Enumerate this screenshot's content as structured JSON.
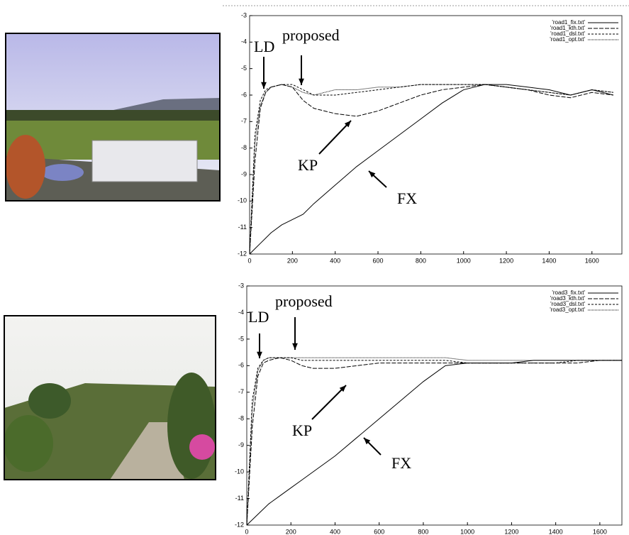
{
  "chart_data": [
    {
      "type": "line",
      "x": [
        0,
        25,
        50,
        75,
        100,
        150,
        200,
        250,
        300,
        400,
        500,
        600,
        700,
        800,
        900,
        1000,
        1100,
        1200,
        1300,
        1400,
        1500,
        1600,
        1700
      ],
      "series": [
        {
          "name": "'road1_fix.txt'",
          "color": "#000000",
          "dash": "none",
          "values": [
            -12.0,
            -11.8,
            -11.6,
            -11.4,
            -11.2,
            -10.9,
            -10.7,
            -10.5,
            -10.1,
            -9.4,
            -8.7,
            -8.1,
            -7.5,
            -6.9,
            -6.3,
            -5.8,
            -5.6,
            -5.6,
            -5.7,
            -5.8,
            -6.0,
            -5.8,
            -6.0
          ]
        },
        {
          "name": "'road1_kth.txt'",
          "color": "#000000",
          "dash": "6 2",
          "values": [
            -12.0,
            -8.5,
            -6.5,
            -5.9,
            -5.7,
            -5.6,
            -5.7,
            -6.2,
            -6.5,
            -6.7,
            -6.8,
            -6.6,
            -6.3,
            -6.0,
            -5.8,
            -5.7,
            -5.6,
            -5.7,
            -5.8,
            -6.0,
            -6.1,
            -5.9,
            -6.0
          ]
        },
        {
          "name": "'road1_dsl.txt'",
          "color": "#000000",
          "dash": "3 2",
          "values": [
            -12.0,
            -7.5,
            -6.2,
            -5.8,
            -5.7,
            -5.6,
            -5.6,
            -5.8,
            -6.0,
            -6.0,
            -5.9,
            -5.8,
            -5.7,
            -5.6,
            -5.6,
            -5.6,
            -5.6,
            -5.7,
            -5.8,
            -5.9,
            -6.0,
            -5.8,
            -5.9
          ]
        },
        {
          "name": "'road1_opt.txt'",
          "color": "#000000",
          "dash": "1 1",
          "values": [
            -12.0,
            -7.8,
            -6.4,
            -5.9,
            -5.7,
            -5.6,
            -5.7,
            -5.9,
            -6.0,
            -5.8,
            -5.8,
            -5.7,
            -5.7,
            -5.6,
            -5.6,
            -5.6,
            -5.6,
            -5.7,
            -5.8,
            -5.9,
            -6.0,
            -5.8,
            -5.9
          ]
        }
      ],
      "annotations": [
        "LD",
        "proposed",
        "KP",
        "FX"
      ],
      "xlim": [
        0,
        1740
      ],
      "xticks": [
        0,
        200,
        400,
        600,
        800,
        1000,
        1200,
        1400,
        1600
      ],
      "ylim": [
        -12,
        -3
      ],
      "yticks": [
        -3,
        -4,
        -5,
        -6,
        -7,
        -8,
        -9,
        -10,
        -11,
        -12
      ],
      "legend": "top-right"
    },
    {
      "type": "line",
      "x": [
        0,
        25,
        50,
        75,
        100,
        150,
        200,
        250,
        300,
        400,
        500,
        600,
        700,
        800,
        900,
        1000,
        1100,
        1200,
        1300,
        1400,
        1500,
        1600,
        1700
      ],
      "series": [
        {
          "name": "'road3_fix.txt'",
          "color": "#000000",
          "dash": "none",
          "values": [
            -12.0,
            -11.8,
            -11.6,
            -11.4,
            -11.2,
            -10.9,
            -10.6,
            -10.3,
            -10.0,
            -9.4,
            -8.7,
            -8.0,
            -7.3,
            -6.6,
            -6.0,
            -5.9,
            -5.9,
            -5.9,
            -5.8,
            -5.8,
            -5.8,
            -5.8,
            -5.8
          ]
        },
        {
          "name": "'road3_kth.txt'",
          "color": "#000000",
          "dash": "6 2",
          "values": [
            -12.0,
            -8.3,
            -6.4,
            -5.9,
            -5.8,
            -5.7,
            -5.8,
            -6.0,
            -6.1,
            -6.1,
            -6.0,
            -5.9,
            -5.9,
            -5.9,
            -5.9,
            -5.9,
            -5.9,
            -5.9,
            -5.9,
            -5.9,
            -5.9,
            -5.8,
            -5.8
          ]
        },
        {
          "name": "'road3_dsl.txt'",
          "color": "#000000",
          "dash": "3 2",
          "values": [
            -12.0,
            -7.3,
            -6.1,
            -5.8,
            -5.7,
            -5.7,
            -5.7,
            -5.8,
            -5.8,
            -5.8,
            -5.8,
            -5.8,
            -5.8,
            -5.8,
            -5.8,
            -5.9,
            -5.9,
            -5.9,
            -5.9,
            -5.9,
            -5.8,
            -5.8,
            -5.8
          ]
        },
        {
          "name": "'road3_opt.txt'",
          "color": "#000000",
          "dash": "1 1",
          "values": [
            -12.0,
            -7.6,
            -6.2,
            -5.8,
            -5.7,
            -5.7,
            -5.7,
            -5.7,
            -5.7,
            -5.7,
            -5.7,
            -5.7,
            -5.7,
            -5.7,
            -5.7,
            -5.8,
            -5.8,
            -5.8,
            -5.8,
            -5.8,
            -5.8,
            -5.8,
            -5.8
          ]
        }
      ],
      "annotations": [
        "LD",
        "proposed",
        "KP",
        "FX"
      ],
      "xlim": [
        0,
        1700
      ],
      "xticks": [
        0,
        200,
        400,
        600,
        800,
        1000,
        1200,
        1400,
        1600
      ],
      "ylim": [
        -12,
        -3
      ],
      "yticks": [
        -3,
        -4,
        -5,
        -6,
        -7,
        -8,
        -9,
        -10,
        -11,
        -12
      ],
      "legend": "top-right"
    }
  ]
}
